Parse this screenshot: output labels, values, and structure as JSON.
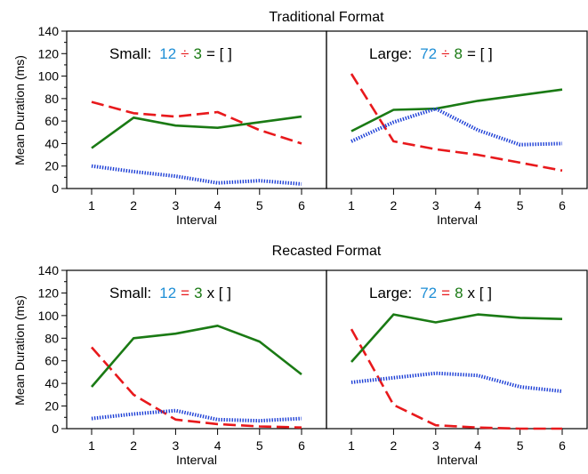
{
  "colors": {
    "blue": "#1f8fd6",
    "red": "#e8191c",
    "green": "#1a7a14",
    "dotted_blue": "#1d3fd6"
  },
  "chart_data": [
    {
      "type": "line",
      "title": "Traditional Format",
      "ylabel": "Mean Duration (ms)",
      "xlabel": "Interval",
      "ylim": [
        0,
        140
      ],
      "yticks": [
        "0",
        "20",
        "40",
        "60",
        "80",
        "100",
        "120",
        "140"
      ],
      "x": [
        "1",
        "2",
        "3",
        "4",
        "5",
        "6"
      ],
      "panels": [
        {
          "label_parts": [
            {
              "text": "Small:",
              "color": "#000000"
            },
            {
              "text": "12",
              "color": "#1f8fd6"
            },
            {
              "text": "÷",
              "color": "#e8191c"
            },
            {
              "text": "3",
              "color": "#1a7a14"
            },
            {
              "text": "= [ ]",
              "color": "#000000"
            }
          ],
          "series": [
            {
              "style": "dashed",
              "color": "#e8191c",
              "values": [
                77,
                67,
                64,
                68,
                52,
                40
              ]
            },
            {
              "style": "solid",
              "color": "#1a7a14",
              "values": [
                36,
                63,
                56,
                54,
                59,
                64
              ]
            },
            {
              "style": "dotted",
              "color": "#1d3fd6",
              "values": [
                20,
                15,
                11,
                5,
                7,
                4
              ]
            }
          ]
        },
        {
          "label_parts": [
            {
              "text": "Large:",
              "color": "#000000"
            },
            {
              "text": "72",
              "color": "#1f8fd6"
            },
            {
              "text": "÷",
              "color": "#e8191c"
            },
            {
              "text": "8",
              "color": "#1a7a14"
            },
            {
              "text": "= [ ]",
              "color": "#000000"
            }
          ],
          "series": [
            {
              "style": "dashed",
              "color": "#e8191c",
              "values": [
                102,
                42,
                35,
                30,
                23,
                16
              ]
            },
            {
              "style": "solid",
              "color": "#1a7a14",
              "values": [
                51,
                70,
                71,
                78,
                83,
                88
              ]
            },
            {
              "style": "dotted",
              "color": "#1d3fd6",
              "values": [
                42,
                59,
                71,
                52,
                39,
                40
              ]
            }
          ]
        }
      ]
    },
    {
      "type": "line",
      "title": "Recasted Format",
      "ylabel": "Mean Duration (ms)",
      "xlabel": "Interval",
      "ylim": [
        0,
        140
      ],
      "yticks": [
        "0",
        "20",
        "40",
        "60",
        "80",
        "100",
        "120",
        "140"
      ],
      "x": [
        "1",
        "2",
        "3",
        "4",
        "5",
        "6"
      ],
      "panels": [
        {
          "label_parts": [
            {
              "text": "Small:",
              "color": "#000000"
            },
            {
              "text": "12",
              "color": "#1f8fd6"
            },
            {
              "text": "=",
              "color": "#e8191c"
            },
            {
              "text": "3",
              "color": "#1a7a14"
            },
            {
              "text": "x [ ]",
              "color": "#000000"
            }
          ],
          "series": [
            {
              "style": "dashed",
              "color": "#e8191c",
              "values": [
                72,
                30,
                8,
                4,
                2,
                1
              ]
            },
            {
              "style": "solid",
              "color": "#1a7a14",
              "values": [
                37,
                80,
                84,
                91,
                77,
                48
              ]
            },
            {
              "style": "dotted",
              "color": "#1d3fd6",
              "values": [
                9,
                13,
                16,
                8,
                7,
                9
              ]
            }
          ]
        },
        {
          "label_parts": [
            {
              "text": "Large:",
              "color": "#000000"
            },
            {
              "text": "72",
              "color": "#1f8fd6"
            },
            {
              "text": "=",
              "color": "#e8191c"
            },
            {
              "text": "8",
              "color": "#1a7a14"
            },
            {
              "text": "x [ ]",
              "color": "#000000"
            }
          ],
          "series": [
            {
              "style": "dashed",
              "color": "#e8191c",
              "values": [
                88,
                21,
                3,
                1,
                0,
                0
              ]
            },
            {
              "style": "solid",
              "color": "#1a7a14",
              "values": [
                59,
                101,
                94,
                101,
                98,
                97
              ]
            },
            {
              "style": "dotted",
              "color": "#1d3fd6",
              "values": [
                41,
                45,
                49,
                47,
                37,
                33
              ]
            }
          ]
        }
      ]
    }
  ]
}
